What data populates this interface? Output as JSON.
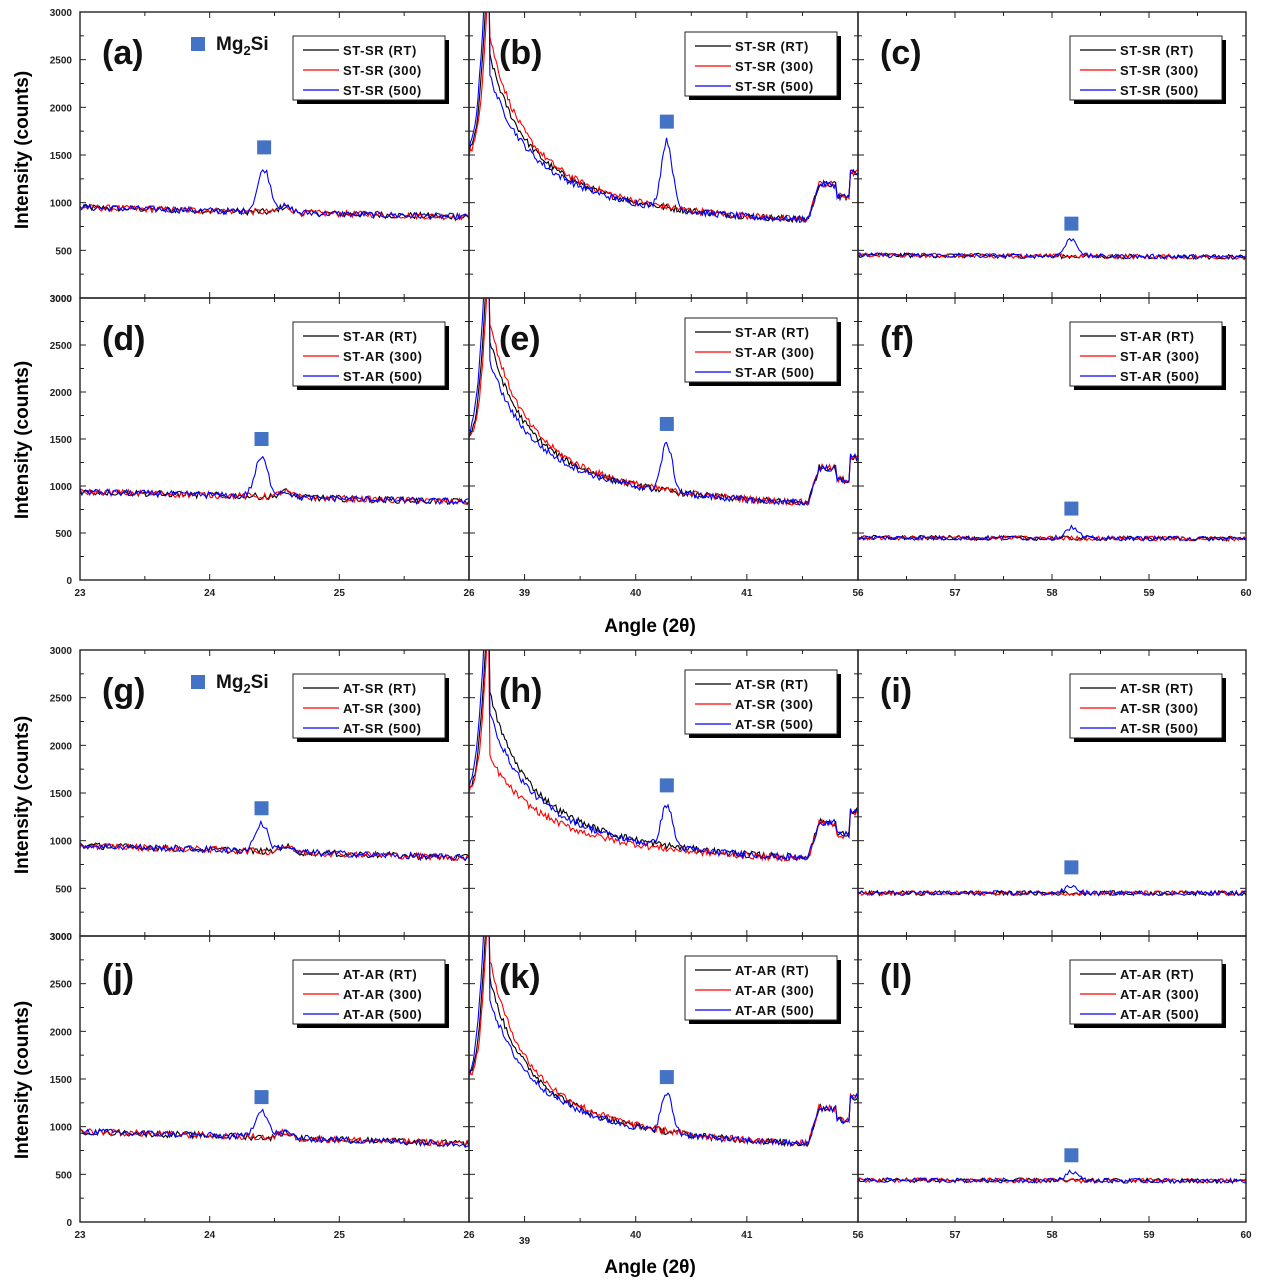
{
  "figure": {
    "ylabel": "Intensity (counts)",
    "xlabel": "Angle (2θ)",
    "marker_label": "Mg₂Si",
    "marker_label_base": "Mg",
    "marker_label_sub": "2",
    "marker_label_tail": "Si",
    "colors": {
      "RT": "#000000",
      "300": "#ff0000",
      "500": "#0000ff",
      "marker": "#4472c4"
    }
  },
  "chart_data": [
    {
      "type": "line",
      "group": "top",
      "xlabel": "Angle (2θ)",
      "ylabel": "Intensity (counts)",
      "ylim": [
        0,
        3000
      ],
      "yticks": [
        0,
        500,
        1000,
        1500,
        2000,
        2500,
        3000
      ],
      "windows": [
        {
          "xlim": [
            23,
            26
          ],
          "xticks": [
            "23",
            "24",
            "25",
            "26"
          ]
        },
        {
          "xlim": [
            38.5,
            42
          ],
          "xticks": [
            "39",
            "40",
            "41"
          ]
        },
        {
          "xlim": [
            56,
            60
          ],
          "xticks": [
            "56",
            "57",
            "58",
            "59",
            "60"
          ]
        }
      ],
      "rows": [
        {
          "sample": "ST-SR",
          "panels": [
            "(a)",
            "(b)",
            "(c)"
          ],
          "series": [
            {
              "name": "ST-SR (RT)",
              "key": "RT"
            },
            {
              "name": "ST-SR (300)",
              "key": "300"
            },
            {
              "name": "ST-SR (500)",
              "key": "500"
            }
          ],
          "baseline_low": [
            950,
            850
          ],
          "baseline_high": [
            450,
            430
          ],
          "mg2si_peaks": [
            {
              "window": 0,
              "x": 24.42,
              "height_500": 1350,
              "marker_y": 1580
            },
            {
              "window": 1,
              "x": 40.28,
              "height_500": 1650,
              "marker_y": 1850
            },
            {
              "window": 2,
              "x": 58.2,
              "height_500": 620,
              "marker_y": 780
            }
          ],
          "show_marker_legend": true
        },
        {
          "sample": "ST-AR",
          "panels": [
            "(d)",
            "(e)",
            "(f)"
          ],
          "series": [
            {
              "name": "ST-AR (RT)",
              "key": "RT"
            },
            {
              "name": "ST-AR (300)",
              "key": "300"
            },
            {
              "name": "ST-AR (500)",
              "key": "500"
            }
          ],
          "baseline_low": [
            940,
            830
          ],
          "baseline_high": [
            450,
            440
          ],
          "mg2si_peaks": [
            {
              "window": 0,
              "x": 24.4,
              "height_500": 1300,
              "marker_y": 1500
            },
            {
              "window": 1,
              "x": 40.28,
              "height_500": 1450,
              "marker_y": 1660
            },
            {
              "window": 2,
              "x": 58.2,
              "height_500": 560,
              "marker_y": 760
            }
          ],
          "show_marker_legend": false
        }
      ]
    },
    {
      "type": "line",
      "group": "bottom",
      "xlabel": "Angle (2θ)",
      "ylabel": "Intensity (counts)",
      "ylim": [
        0,
        3000
      ],
      "yticks": [
        0,
        500,
        1000,
        1500,
        2000,
        2500,
        3000
      ],
      "windows": [
        {
          "xlim": [
            23,
            26
          ],
          "xticks": [
            "23",
            "24",
            "25",
            "26"
          ]
        },
        {
          "xlim": [
            38.5,
            42
          ],
          "xticks": [
            "39",
            "40",
            "41"
          ]
        },
        {
          "xlim": [
            56,
            60
          ],
          "xticks": [
            "56",
            "57",
            "58",
            "59",
            "60"
          ]
        }
      ],
      "rows": [
        {
          "sample": "AT-SR",
          "panels": [
            "(g)",
            "(h)",
            "(i)"
          ],
          "series": [
            {
              "name": "AT-SR (RT)",
              "key": "RT"
            },
            {
              "name": "AT-SR (300)",
              "key": "300"
            },
            {
              "name": "AT-SR (500)",
              "key": "500"
            }
          ],
          "baseline_low": [
            950,
            820
          ],
          "baseline_high": [
            450,
            450
          ],
          "mg2si_peaks": [
            {
              "window": 0,
              "x": 24.4,
              "height_500": 1180,
              "marker_y": 1340
            },
            {
              "window": 1,
              "x": 40.28,
              "height_500": 1380,
              "marker_y": 1580
            },
            {
              "window": 2,
              "x": 58.2,
              "height_500": 520,
              "marker_y": 720
            }
          ],
          "show_marker_legend": true
        },
        {
          "sample": "AT-AR",
          "panels": [
            "(j)",
            "(k)",
            "(l)"
          ],
          "series": [
            {
              "name": "AT-AR (RT)",
              "key": "RT"
            },
            {
              "name": "AT-AR (300)",
              "key": "300"
            },
            {
              "name": "AT-AR (500)",
              "key": "500"
            }
          ],
          "baseline_low": [
            950,
            820
          ],
          "baseline_high": [
            440,
            430
          ],
          "mg2si_peaks": [
            {
              "window": 0,
              "x": 24.4,
              "height_500": 1180,
              "marker_y": 1310
            },
            {
              "window": 1,
              "x": 40.28,
              "height_500": 1350,
              "marker_y": 1520
            },
            {
              "window": 2,
              "x": 58.2,
              "height_500": 530,
              "marker_y": 700
            }
          ],
          "show_marker_legend": false
        }
      ]
    }
  ]
}
